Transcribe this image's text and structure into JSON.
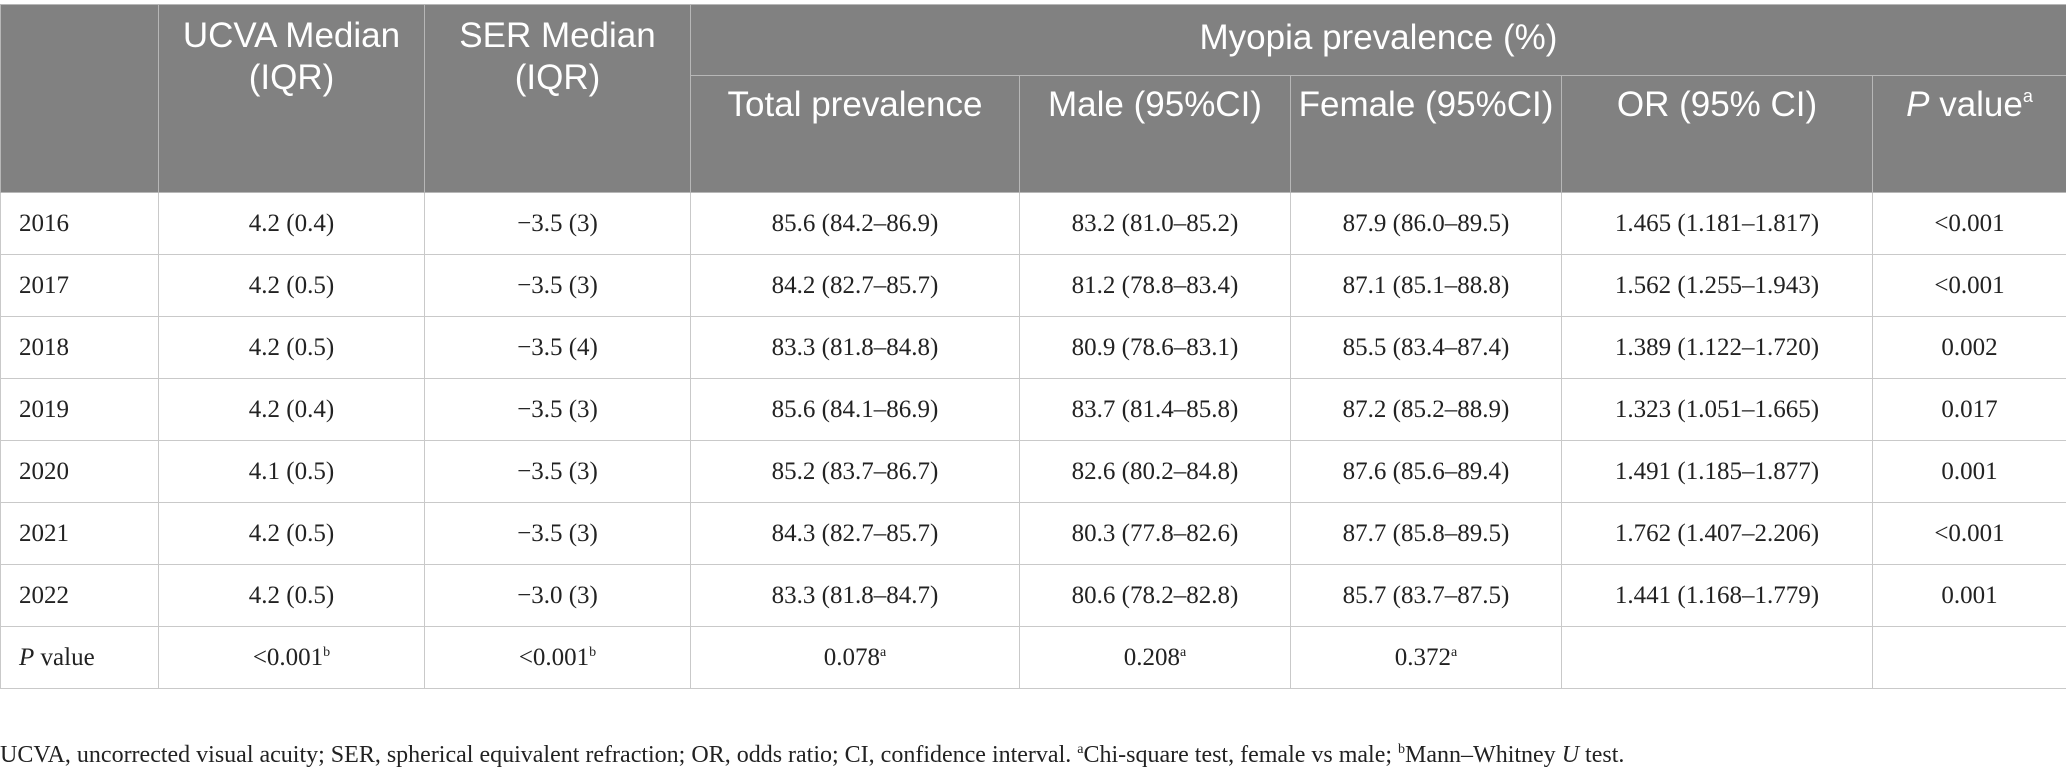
{
  "table": {
    "headers": {
      "ucva": "UCVA Median (IQR)",
      "ser": "SER Median (IQR)",
      "group": "Myopia prevalence (%)",
      "total": "Total prevalence",
      "male": "Male (95%CI)",
      "female": "Female (95%CI)",
      "or": "OR (95% CI)",
      "p_italic": "P",
      "p_rest": " value",
      "p_sup": "a"
    },
    "rows": [
      {
        "year": "2016",
        "ucva": "4.2 (0.4)",
        "ser": "−3.5 (3)",
        "total": "85.6 (84.2–86.9)",
        "male": "83.2 (81.0–85.2)",
        "female": "87.9 (86.0–89.5)",
        "or": "1.465 (1.181–1.817)",
        "p": "<0.001"
      },
      {
        "year": "2017",
        "ucva": "4.2 (0.5)",
        "ser": "−3.5 (3)",
        "total": "84.2 (82.7–85.7)",
        "male": "81.2 (78.8–83.4)",
        "female": "87.1 (85.1–88.8)",
        "or": "1.562 (1.255–1.943)",
        "p": "<0.001"
      },
      {
        "year": "2018",
        "ucva": "4.2 (0.5)",
        "ser": "−3.5 (4)",
        "total": "83.3 (81.8–84.8)",
        "male": "80.9 (78.6–83.1)",
        "female": "85.5 (83.4–87.4)",
        "or": "1.389 (1.122–1.720)",
        "p": "0.002"
      },
      {
        "year": "2019",
        "ucva": "4.2 (0.4)",
        "ser": "−3.5 (3)",
        "total": "85.6 (84.1–86.9)",
        "male": "83.7 (81.4–85.8)",
        "female": "87.2 (85.2–88.9)",
        "or": "1.323 (1.051–1.665)",
        "p": "0.017"
      },
      {
        "year": "2020",
        "ucva": "4.1 (0.5)",
        "ser": "−3.5 (3)",
        "total": "85.2 (83.7–86.7)",
        "male": "82.6 (80.2–84.8)",
        "female": "87.6 (85.6–89.4)",
        "or": "1.491 (1.185–1.877)",
        "p": "0.001"
      },
      {
        "year": "2021",
        "ucva": "4.2 (0.5)",
        "ser": "−3.5 (3)",
        "total": "84.3 (82.7–85.7)",
        "male": "80.3 (77.8–82.6)",
        "female": "87.7 (85.8–89.5)",
        "or": "1.762 (1.407–2.206)",
        "p": "<0.001"
      },
      {
        "year": "2022",
        "ucva": "4.2 (0.5)",
        "ser": "−3.0 (3)",
        "total": "83.3 (81.8–84.7)",
        "male": "80.6 (78.2–82.8)",
        "female": "85.7 (83.7–87.5)",
        "or": "1.441 (1.168–1.779)",
        "p": "0.001"
      }
    ],
    "p_row": {
      "label_italic": "P",
      "label_rest": " value",
      "ucva": "<0.001",
      "ucva_sup": "b",
      "ser": "<0.001",
      "ser_sup": "b",
      "total": "0.078",
      "total_sup": "a",
      "male": "0.208",
      "male_sup": "a",
      "female": "0.372",
      "female_sup": "a",
      "or": "",
      "p": ""
    }
  },
  "footnote": {
    "part1": "UCVA, uncorrected visual acuity; SER, spherical equivalent refraction; OR, odds ratio; CI, confidence interval. ",
    "sup_a": "a",
    "part2": "Chi-square test, female vs male; ",
    "sup_b": "b",
    "part3": "Mann–Whitney ",
    "italic_u": "U",
    "part4": " test."
  }
}
